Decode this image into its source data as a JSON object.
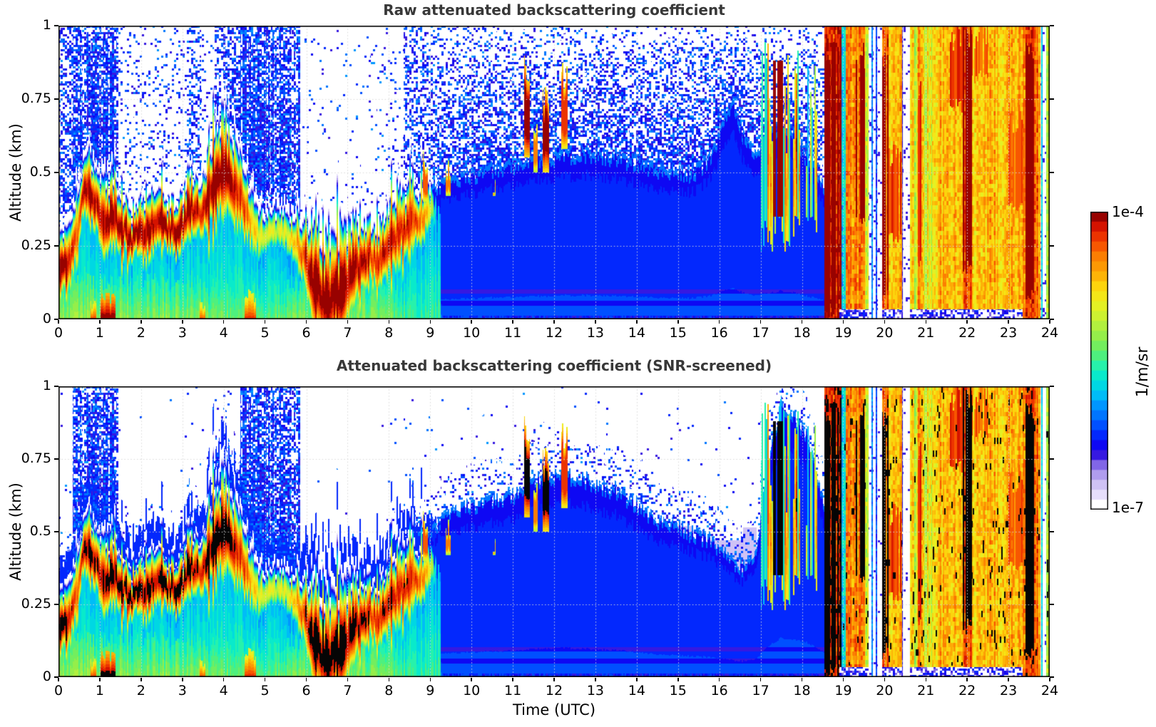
{
  "figure": {
    "bg": "#ffffff",
    "text_color": "#000000",
    "title_color": "#383838"
  },
  "panels": [
    {
      "title": "Raw attenuated backscattering coefficient"
    },
    {
      "title": "Attenuated backscattering coefficient (SNR-screened)"
    }
  ],
  "axes": {
    "x": {
      "label": "Time (UTC)",
      "ticks": [
        "0",
        "1",
        "2",
        "3",
        "4",
        "5",
        "6",
        "7",
        "8",
        "9",
        "10",
        "11",
        "12",
        "13",
        "14",
        "15",
        "16",
        "17",
        "18",
        "19",
        "20",
        "21",
        "22",
        "23",
        "24"
      ]
    },
    "y": {
      "label": "Altitude (km)",
      "ticks": [
        {
          "v": 0,
          "t": "0"
        },
        {
          "v": 0.25,
          "t": "0.25"
        },
        {
          "v": 0.5,
          "t": "0.5"
        },
        {
          "v": 0.75,
          "t": "0.75"
        },
        {
          "v": 1,
          "t": "1"
        }
      ]
    }
  },
  "colorbar": {
    "max_label": "1e-4",
    "min_label": "1e-7",
    "unit": "1/m/sr",
    "n_steps": 30,
    "stops": [
      [
        0,
        "#ffffff"
      ],
      [
        0.03,
        "#f3f0fd"
      ],
      [
        0.05,
        "#e6defb"
      ],
      [
        0.08,
        "#d2c6f6"
      ],
      [
        0.11,
        "#b6a4ef"
      ],
      [
        0.14,
        "#9d86ea"
      ],
      [
        0.165,
        "#5636e2"
      ],
      [
        0.19,
        "#2a0ee0"
      ],
      [
        0.22,
        "#0b07f5"
      ],
      [
        0.26,
        "#0033ff"
      ],
      [
        0.3,
        "#0064ff"
      ],
      [
        0.35,
        "#0096ff"
      ],
      [
        0.39,
        "#00c3f5"
      ],
      [
        0.44,
        "#00e8d4"
      ],
      [
        0.49,
        "#2df4a5"
      ],
      [
        0.53,
        "#5fee6a"
      ],
      [
        0.58,
        "#92ee4b"
      ],
      [
        0.64,
        "#c6f235"
      ],
      [
        0.7,
        "#f0f01e"
      ],
      [
        0.745,
        "#fcd90e"
      ],
      [
        0.79,
        "#fcae06"
      ],
      [
        0.85,
        "#fb7e02"
      ],
      [
        0.9,
        "#f54400"
      ],
      [
        0.945,
        "#dd1600"
      ],
      [
        0.975,
        "#aa0300"
      ],
      [
        1,
        "#740000"
      ]
    ]
  },
  "chart_data": {
    "type": "heatmap",
    "x_axis": {
      "label": "Time (UTC)",
      "range_hours": [
        0,
        24
      ],
      "tick_step": 1
    },
    "y_axis": {
      "label": "Altitude (km)",
      "range_km": [
        0,
        1
      ],
      "tick_step": 0.25
    },
    "z_axis": {
      "unit": "1/m/sr",
      "scale": "log10",
      "min": 1e-07,
      "max": 0.0001
    },
    "panels": [
      {
        "title": "Raw attenuated backscattering coefficient",
        "screened": false
      },
      {
        "title": "Attenuated backscattering coefficient (SNR-screened)",
        "screened": true,
        "saturation": "black",
        "saturation_log10": -4.1
      }
    ],
    "model": {
      "layer": {
        "t": [
          0,
          0.2,
          0.45,
          0.6,
          0.75,
          0.95,
          1.1,
          1.3,
          1.5,
          1.8,
          2.1,
          2.4,
          2.7,
          3.0,
          3.2,
          3.45,
          3.65,
          3.85,
          4.05,
          4.25,
          4.5,
          4.75,
          5.1,
          5.5,
          5.8,
          6.05,
          6.3,
          6.55,
          6.8,
          7.05,
          7.3,
          7.55,
          7.8,
          8.05,
          8.3,
          8.55,
          8.8,
          9.0,
          9.25
        ],
        "center_km": [
          0.18,
          0.17,
          0.28,
          0.42,
          0.43,
          0.38,
          0.33,
          0.36,
          0.31,
          0.28,
          0.3,
          0.33,
          0.3,
          0.32,
          0.38,
          0.35,
          0.42,
          0.48,
          0.52,
          0.45,
          0.38,
          0.3,
          0.28,
          0.3,
          0.26,
          0.17,
          0.1,
          0.07,
          0.09,
          0.14,
          0.19,
          0.22,
          0.2,
          0.26,
          0.3,
          0.33,
          0.35,
          0.36,
          0.36
        ],
        "halfwidth_km": [
          0.07,
          0.07,
          0.06,
          0.06,
          0.07,
          0.06,
          0.08,
          0.07,
          0.06,
          0.055,
          0.06,
          0.06,
          0.055,
          0.06,
          0.07,
          0.06,
          0.08,
          0.1,
          0.11,
          0.09,
          0.07,
          0.06,
          0.05,
          0.05,
          0.06,
          0.09,
          0.12,
          0.13,
          0.12,
          0.1,
          0.08,
          0.07,
          0.07,
          0.08,
          0.08,
          0.07,
          0.06,
          0.05,
          0.04
        ],
        "peak_log10": [
          -3.95,
          -4.0,
          -4.4,
          -4.05,
          -4.0,
          -4.1,
          -4.0,
          -4.0,
          -4.0,
          -3.98,
          -4.0,
          -4.0,
          -4.0,
          -4.0,
          -3.98,
          -4.1,
          -4.0,
          -3.95,
          -3.95,
          -4.05,
          -4.3,
          -4.75,
          -5.0,
          -4.95,
          -4.6,
          -4.05,
          -3.95,
          -3.9,
          -3.92,
          -3.98,
          -4.05,
          -4.2,
          -4.15,
          -4.05,
          -4.1,
          -4.2,
          -4.45,
          -4.8,
          -6.6
        ]
      },
      "surface": {
        "t": [
          0,
          1,
          2,
          3,
          4,
          5,
          6,
          7,
          8,
          8.8,
          9.1,
          9.5,
          18.6
        ],
        "depth_km": [
          0.13,
          0.12,
          0.12,
          0.12,
          0.11,
          0.1,
          0.12,
          0.14,
          0.12,
          0.1,
          0.07,
          0.05,
          0.04
        ],
        "value_log10": [
          -5.3,
          -5.25,
          -5.3,
          -5.3,
          -5.35,
          -5.4,
          -5.3,
          -5.3,
          -5.35,
          -5.6,
          -6.0,
          -6.2,
          -6.3
        ]
      },
      "mound_top_km": {
        "t": [
          8.7,
          9.0,
          9.5,
          10,
          10.5,
          11,
          11.5,
          12,
          12.5,
          13,
          13.5,
          14,
          14.5,
          15,
          15.4,
          15.8,
          16.1,
          16.35,
          16.6,
          16.9,
          17.2,
          17.5,
          17.8,
          18.1,
          18.35,
          18.55
        ],
        "raw": [
          0.38,
          0.44,
          0.48,
          0.5,
          0.52,
          0.53,
          0.55,
          0.56,
          0.57,
          0.57,
          0.56,
          0.54,
          0.52,
          0.5,
          0.51,
          0.56,
          0.68,
          0.74,
          0.62,
          0.58,
          0.62,
          0.68,
          0.64,
          0.56,
          0.5,
          0.46
        ],
        "screened": [
          0.4,
          0.5,
          0.58,
          0.6,
          0.62,
          0.63,
          0.68,
          0.7,
          0.7,
          0.67,
          0.65,
          0.6,
          0.55,
          0.52,
          0.5,
          0.48,
          0.44,
          0.4,
          0.38,
          0.45,
          0.75,
          0.95,
          0.9,
          0.85,
          0.7,
          0.6
        ]
      },
      "speckle_periods": [
        [
          0,
          0.35,
          0.55,
          0
        ],
        [
          0.35,
          0.65,
          0.8,
          1
        ],
        [
          0.65,
          1.45,
          0.93,
          1
        ],
        [
          1.45,
          3.1,
          0.13,
          0
        ],
        [
          3.1,
          3.45,
          0.4,
          0
        ],
        [
          3.45,
          3.78,
          0.1,
          0
        ],
        [
          3.78,
          4.4,
          0.6,
          0
        ],
        [
          4.4,
          5.85,
          0.95,
          1
        ],
        [
          5.85,
          7.55,
          0.03,
          0
        ],
        [
          7.55,
          8.35,
          0.07,
          0
        ],
        [
          8.35,
          9.0,
          0.45,
          0
        ],
        [
          9.0,
          17.0,
          0.55,
          0
        ],
        [
          17.0,
          18.4,
          0.5,
          0
        ],
        [
          18.4,
          18.55,
          0.35,
          0
        ]
      ],
      "spikes": [
        [
          8.82,
          8.95,
          0.4,
          0.62,
          -4.35
        ],
        [
          9.38,
          9.5,
          0.42,
          0.6,
          -4.5
        ],
        [
          10.52,
          10.58,
          0.42,
          0.55,
          -4.7
        ],
        [
          11.28,
          11.42,
          0.55,
          0.93,
          -4.05
        ],
        [
          11.5,
          11.6,
          0.5,
          0.72,
          -4.45
        ],
        [
          11.72,
          11.88,
          0.5,
          0.8,
          -4.1
        ],
        [
          12.18,
          12.33,
          0.58,
          0.88,
          -4.2
        ]
      ],
      "surface_blobs": [
        [
          0.78,
          0.92,
          0.05,
          -4.25
        ],
        [
          1.02,
          1.38,
          0.07,
          -3.9
        ],
        [
          3.42,
          3.55,
          0.05,
          -4.3
        ],
        [
          4.5,
          4.78,
          0.08,
          -4.2
        ]
      ],
      "virga": {
        "t0": 17.0,
        "t1": 18.4,
        "p": 0.55,
        "cores": [
          [
            17.28,
            17.62,
            0.35,
            0.88,
            -4.05
          ]
        ]
      },
      "rain_segments": [
        {
          "t0": 18.55,
          "t1": 18.95,
          "base": -4.2,
          "var": 0.15,
          "type": "rain",
          "cores": [
            [
              0.05,
              0.95,
              -3.97
            ]
          ]
        },
        {
          "t0": 18.95,
          "t1": 19.07,
          "base": -5.55,
          "var": 0.3,
          "type": "cyan",
          "cores": []
        },
        {
          "t0": 19.07,
          "t1": 19.3,
          "base": -4.6,
          "var": 0.18,
          "type": "rain",
          "cores": []
        },
        {
          "t0": 19.3,
          "t1": 19.52,
          "base": -4.5,
          "var": 0.18,
          "type": "rain",
          "cores": [
            [
              0.35,
              0.92,
              -4.05
            ]
          ]
        },
        {
          "t0": 19.52,
          "t1": 19.62,
          "base": -4.9,
          "var": 0.3,
          "type": "rain",
          "cores": []
        },
        {
          "t0": 19.62,
          "t1": 19.95,
          "base": -7.3,
          "var": 0,
          "type": "gap",
          "cores": []
        },
        {
          "t0": 19.95,
          "t1": 20.1,
          "base": -4.35,
          "var": 0.15,
          "type": "rain",
          "cores": [
            [
              0.1,
              0.9,
              -4.1
            ]
          ]
        },
        {
          "t0": 20.1,
          "t1": 20.42,
          "base": -4.65,
          "var": 0.18,
          "type": "rain",
          "cores": [
            [
              0.3,
              0.6,
              -4.3
            ]
          ]
        },
        {
          "t0": 20.42,
          "t1": 20.62,
          "base": -7.3,
          "var": 0,
          "type": "gap",
          "cores": []
        },
        {
          "t0": 20.62,
          "t1": 20.8,
          "base": -4.95,
          "var": 0.3,
          "type": "rain",
          "cores": []
        },
        {
          "t0": 20.8,
          "t1": 20.92,
          "base": -4.5,
          "var": 0.2,
          "type": "rain",
          "cores": [
            [
              0.2,
              0.8,
              -4.15
            ]
          ]
        },
        {
          "t0": 20.92,
          "t1": 21.15,
          "base": -5.05,
          "var": 0.35,
          "type": "green",
          "cores": []
        },
        {
          "t0": 21.15,
          "t1": 21.55,
          "base": -4.7,
          "var": 0.15,
          "type": "rain",
          "cores": []
        },
        {
          "t0": 21.55,
          "t1": 21.9,
          "base": -4.65,
          "var": 0.15,
          "type": "rain",
          "cores": [
            [
              0.75,
              1.0,
              -4.25
            ]
          ]
        },
        {
          "t0": 21.9,
          "t1": 22.12,
          "base": -4.35,
          "var": 0.15,
          "type": "rain",
          "cores": [
            [
              0.2,
              1.0,
              -4.0
            ]
          ]
        },
        {
          "t0": 22.12,
          "t1": 22.5,
          "base": -4.7,
          "var": 0.15,
          "type": "rain",
          "cores": [
            [
              0.85,
              1.0,
              -4.35
            ]
          ]
        },
        {
          "t0": 22.5,
          "t1": 23.0,
          "base": -4.68,
          "var": 0.15,
          "type": "rain",
          "cores": []
        },
        {
          "t0": 23.0,
          "t1": 23.42,
          "base": -4.6,
          "var": 0.15,
          "type": "rain",
          "cores": [
            [
              0.4,
              0.7,
              -4.4
            ]
          ]
        },
        {
          "t0": 23.42,
          "t1": 23.62,
          "base": -4.25,
          "var": 0.1,
          "type": "rain",
          "cores": [
            [
              0.1,
              0.95,
              -3.97
            ]
          ]
        },
        {
          "t0": 23.62,
          "t1": 23.78,
          "base": -4.5,
          "var": 0.2,
          "type": "rain",
          "cores": []
        },
        {
          "t0": 23.78,
          "t1": 23.92,
          "base": -7.3,
          "var": 0,
          "type": "gap",
          "cores": []
        },
        {
          "t0": 23.92,
          "t1": 24.01,
          "base": -5.2,
          "var": 0.25,
          "type": "green",
          "cores": []
        }
      ]
    }
  }
}
